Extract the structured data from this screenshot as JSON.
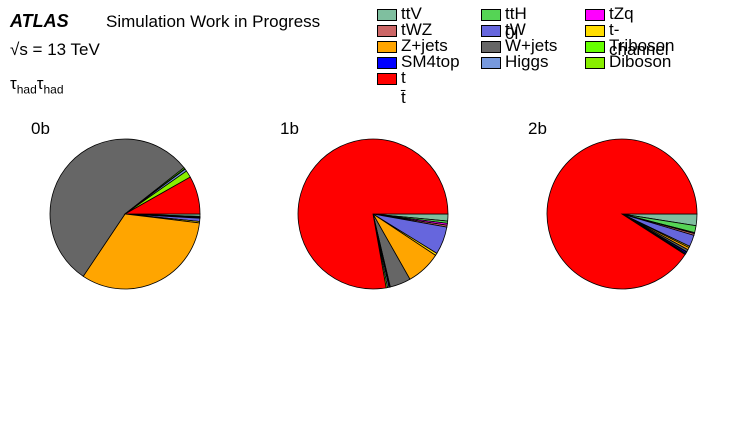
{
  "header": {
    "atlas": "ATLAS",
    "subtitle": "Simulation Work in Progress",
    "energy": "√s = 13 TeV",
    "channel": "τhadτhad"
  },
  "chart_data": [
    {
      "type": "pie",
      "title": "0b",
      "slices": [
        {
          "name": "ttV",
          "value": 0.5
        },
        {
          "name": "ttH 0l",
          "value": 0.2
        },
        {
          "name": "tZq",
          "value": 0.1
        },
        {
          "name": "tWZ",
          "value": 0.1
        },
        {
          "name": "tW",
          "value": 0.7
        },
        {
          "name": "t-channel",
          "value": 0.3
        },
        {
          "name": "Z+jets",
          "value": 32.5
        },
        {
          "name": "W+jets",
          "value": 55.0
        },
        {
          "name": "Triboson",
          "value": 0.3
        },
        {
          "name": "SM4top",
          "value": 0.1
        },
        {
          "name": "Higgs",
          "value": 0.5
        },
        {
          "name": "Diboson",
          "value": 1.5
        },
        {
          "name": "tt",
          "value": 8.2
        }
      ]
    },
    {
      "type": "pie",
      "title": "1b",
      "slices": [
        {
          "name": "ttV",
          "value": 1.5
        },
        {
          "name": "ttH 0l",
          "value": 0.5
        },
        {
          "name": "tZq",
          "value": 0.4
        },
        {
          "name": "tWZ",
          "value": 0.4
        },
        {
          "name": "tW",
          "value": 6.0
        },
        {
          "name": "t-channel",
          "value": 0.5
        },
        {
          "name": "Z+jets",
          "value": 7.5
        },
        {
          "name": "W+jets",
          "value": 4.5
        },
        {
          "name": "Triboson",
          "value": 0.1
        },
        {
          "name": "SM4top",
          "value": 0.2
        },
        {
          "name": "Higgs",
          "value": 0.3
        },
        {
          "name": "Diboson",
          "value": 0.3
        },
        {
          "name": "tt",
          "value": 77.8
        }
      ]
    },
    {
      "type": "pie",
      "title": "2b",
      "slices": [
        {
          "name": "ttV",
          "value": 2.5
        },
        {
          "name": "ttH 0l",
          "value": 1.5
        },
        {
          "name": "tZq",
          "value": 0.2
        },
        {
          "name": "tWZ",
          "value": 0.4
        },
        {
          "name": "tW",
          "value": 2.5
        },
        {
          "name": "t-channel",
          "value": 0.3
        },
        {
          "name": "Z+jets",
          "value": 0.5
        },
        {
          "name": "W+jets",
          "value": 0.5
        },
        {
          "name": "Triboson",
          "value": 0.1
        },
        {
          "name": "SM4top",
          "value": 0.3
        },
        {
          "name": "Higgs",
          "value": 0.2
        },
        {
          "name": "Diboson",
          "value": 0.1
        },
        {
          "name": "tt",
          "value": 90.9
        }
      ]
    }
  ],
  "legend": [
    {
      "label": "ttV",
      "color": "#7fbf9f"
    },
    {
      "label": "ttH 0l",
      "color": "#55d455"
    },
    {
      "label": "tZq",
      "color": "#ff00ff"
    },
    {
      "label": "tWZ",
      "color": "#cc6666"
    },
    {
      "label": "tW",
      "color": "#6666dd"
    },
    {
      "label": "t-channel",
      "color": "#ffdd00"
    },
    {
      "label": "Z+jets",
      "color": "#ffa500"
    },
    {
      "label": "W+jets",
      "color": "#666666"
    },
    {
      "label": "Triboson",
      "color": "#66ff00"
    },
    {
      "label": "SM4top",
      "color": "#0000ff"
    },
    {
      "label": "Higgs",
      "color": "#7799dd"
    },
    {
      "label": "Diboson",
      "color": "#88ee00"
    },
    {
      "label": "t t̄",
      "color": "#ff0000"
    }
  ]
}
